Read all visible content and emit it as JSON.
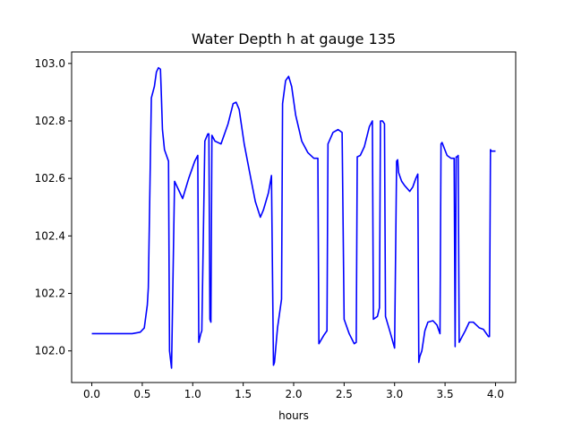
{
  "chart_data": {
    "type": "line",
    "title": "Water Depth h at gauge 135",
    "xlabel": "hours",
    "ylabel": "",
    "xlim": [
      -0.2,
      4.2
    ],
    "ylim": [
      101.89,
      103.04
    ],
    "xticks": [
      0.0,
      0.5,
      1.0,
      1.5,
      2.0,
      2.5,
      3.0,
      3.5,
      4.0
    ],
    "xtick_labels": [
      "0.0",
      "0.5",
      "1.0",
      "1.5",
      "2.0",
      "2.5",
      "3.0",
      "3.5",
      "4.0"
    ],
    "yticks": [
      102.0,
      102.2,
      102.4,
      102.6,
      102.8,
      103.0
    ],
    "ytick_labels": [
      "102.0",
      "102.2",
      "102.4",
      "102.6",
      "102.8",
      "103.0"
    ],
    "grid": false,
    "legend": false,
    "series": [
      {
        "color": "#0000ff",
        "x": [
          0.0,
          0.4,
          0.48,
          0.52,
          0.55,
          0.56,
          0.59,
          0.62,
          0.64,
          0.66,
          0.68,
          0.69,
          0.7,
          0.72,
          0.76,
          0.77,
          0.78,
          0.79,
          0.82,
          0.86,
          0.9,
          0.96,
          1.02,
          1.05,
          1.06,
          1.08,
          1.09,
          1.12,
          1.15,
          1.16,
          1.17,
          1.18,
          1.19,
          1.22,
          1.28,
          1.35,
          1.4,
          1.43,
          1.46,
          1.51,
          1.57,
          1.62,
          1.67,
          1.7,
          1.75,
          1.78,
          1.8,
          1.81,
          1.84,
          1.88,
          1.89,
          1.92,
          1.95,
          1.98,
          2.02,
          2.08,
          2.14,
          2.2,
          2.24,
          2.25,
          2.3,
          2.33,
          2.34,
          2.39,
          2.44,
          2.48,
          2.5,
          2.51,
          2.55,
          2.6,
          2.62,
          2.63,
          2.66,
          2.7,
          2.75,
          2.78,
          2.79,
          2.83,
          2.85,
          2.86,
          2.88,
          2.9,
          2.91,
          2.96,
          3.0,
          3.02,
          3.03,
          3.04,
          3.05,
          3.07,
          3.1,
          3.15,
          3.18,
          3.21,
          3.23,
          3.24,
          3.25,
          3.27,
          3.3,
          3.33,
          3.38,
          3.42,
          3.45,
          3.46,
          3.47,
          3.52,
          3.56,
          3.59,
          3.6,
          3.61,
          3.62,
          3.63,
          3.64,
          3.67,
          3.7,
          3.74,
          3.78,
          3.81,
          3.84,
          3.88,
          3.93,
          3.94,
          3.95,
          3.96,
          3.98,
          4.0
        ],
        "y": [
          102.06,
          102.06,
          102.065,
          102.08,
          102.16,
          102.22,
          102.88,
          102.92,
          102.97,
          102.985,
          102.98,
          102.88,
          102.77,
          102.7,
          102.66,
          102.0,
          101.97,
          101.94,
          102.59,
          102.56,
          102.53,
          102.6,
          102.66,
          102.68,
          102.03,
          102.06,
          102.07,
          102.73,
          102.755,
          102.755,
          102.11,
          102.1,
          102.75,
          102.73,
          102.72,
          102.79,
          102.86,
          102.865,
          102.84,
          102.72,
          102.61,
          102.52,
          102.465,
          102.49,
          102.55,
          102.61,
          101.95,
          101.96,
          102.08,
          102.18,
          102.86,
          102.94,
          102.955,
          102.92,
          102.82,
          102.73,
          102.69,
          102.67,
          102.67,
          102.025,
          102.055,
          102.07,
          102.72,
          102.76,
          102.77,
          102.76,
          102.11,
          102.1,
          102.06,
          102.025,
          102.03,
          102.675,
          102.68,
          102.71,
          102.78,
          102.8,
          102.11,
          102.12,
          102.15,
          102.8,
          102.8,
          102.79,
          102.12,
          102.06,
          102.01,
          102.66,
          102.665,
          102.62,
          102.61,
          102.59,
          102.575,
          102.555,
          102.57,
          102.6,
          102.615,
          101.96,
          101.98,
          102.0,
          102.07,
          102.1,
          102.105,
          102.09,
          102.06,
          102.72,
          102.725,
          102.68,
          102.67,
          102.67,
          102.015,
          102.675,
          102.675,
          102.68,
          102.03,
          102.05,
          102.07,
          102.1,
          102.1,
          102.09,
          102.08,
          102.075,
          102.05,
          102.05,
          102.7,
          102.695,
          102.695,
          102.695
        ]
      }
    ]
  }
}
